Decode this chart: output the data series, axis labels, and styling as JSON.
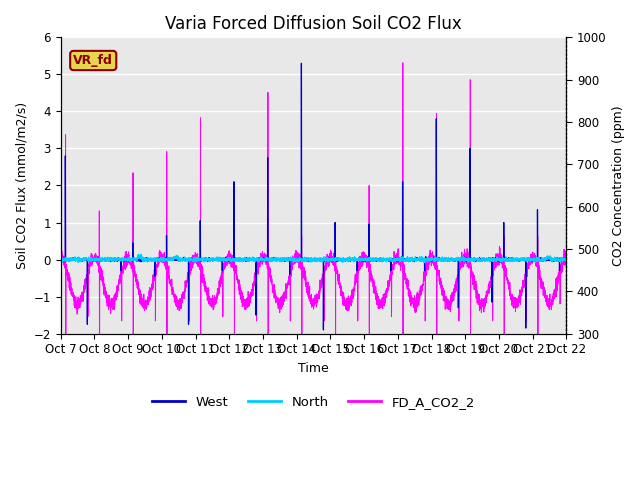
{
  "title": "Varia Forced Diffusion Soil CO2 Flux",
  "xlabel": "Time",
  "ylabel_left": "Soil CO2 Flux (mmol/m2/s)",
  "ylabel_right": "CO2 Concentration (ppm)",
  "ylim_left": [
    -2.0,
    6.0
  ],
  "ylim_right": [
    300,
    1000
  ],
  "x_tick_labels": [
    "Oct 7",
    "Oct 8",
    "Oct 9",
    "Oct 10",
    "Oct 11",
    "Oct 12",
    "Oct 13",
    "Oct 14",
    "Oct 15",
    "Oct 16",
    "Oct 17",
    "Oct 18",
    "Oct 19",
    "Oct 20",
    "Oct 21",
    "Oct 22"
  ],
  "legend_entries": [
    "West",
    "North",
    "FD_A_CO2_2"
  ],
  "legend_colors": [
    "#0000cd",
    "#00ccff",
    "#ff00ff"
  ],
  "box_label": "VR_fd",
  "box_facecolor": "#e8d44d",
  "box_edgecolor": "#8B0000",
  "background_color": "#e8e8e8",
  "grid_color": "white",
  "west_color": "#0000cd",
  "north_color": "#00ccff",
  "co2_color": "#ff00ff",
  "title_fontsize": 12,
  "axis_label_fontsize": 9,
  "tick_fontsize": 8.5
}
